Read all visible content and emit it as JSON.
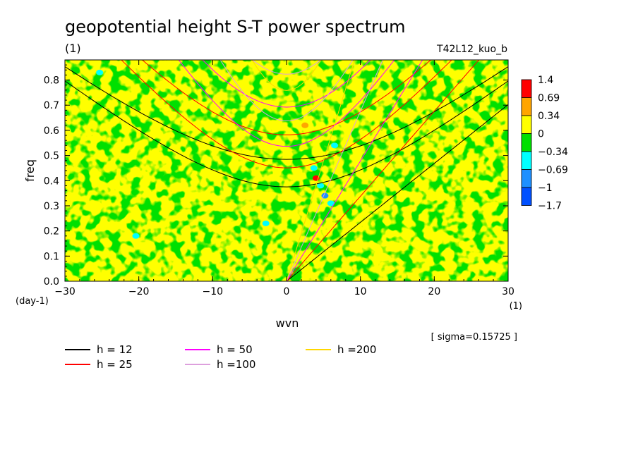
{
  "chart_data": {
    "type": "heatmap",
    "title": "geopotential height S-T power spectrum",
    "subtitle": "(1)",
    "experiment": "T42L12_kuo_b",
    "xlabel": "wvn",
    "xunit": "(1)",
    "ylabel": "freq",
    "yunit": "(day-1)",
    "xlim": [
      -30,
      30
    ],
    "ylim": [
      0,
      0.88
    ],
    "xticks": [
      "−30",
      "−20",
      "−10",
      "0",
      "10",
      "20",
      "30"
    ],
    "xtick_values": [
      -30,
      -20,
      -10,
      0,
      10,
      20,
      30
    ],
    "yticks": [
      "0.0",
      "0.1",
      "0.2",
      "0.3",
      "0.4",
      "0.5",
      "0.6",
      "0.7",
      "0.8"
    ],
    "ytick_values": [
      0,
      0.1,
      0.2,
      0.3,
      0.4,
      0.5,
      0.6,
      0.7,
      0.8
    ],
    "colorbar": {
      "levels": [
        "1.4",
        "0.69",
        "0.34",
        "0",
        "−0.34",
        "−0.69",
        "−1",
        "−1.7"
      ],
      "colors": [
        "#ff0000",
        "#ffa500",
        "#ffff00",
        "#00e000",
        "#00ffff",
        "#1e90ff",
        "#0050ff"
      ]
    },
    "note": "[ sigma=0.15725 ]",
    "dispersion_curves": [
      {
        "name": "h = 12",
        "color": "#000000"
      },
      {
        "name": "h = 25",
        "color": "#ff0000"
      },
      {
        "name": "h = 50",
        "color": "#ff00ff"
      },
      {
        "name": "h =100",
        "color": "#dda0dd"
      },
      {
        "name": "h =200",
        "color": "#ffd700"
      }
    ]
  }
}
